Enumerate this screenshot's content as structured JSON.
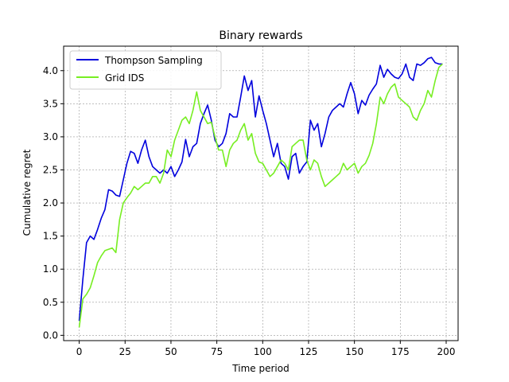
{
  "chart_data": {
    "type": "line",
    "title": "Binary rewards",
    "xlabel": "Time period",
    "ylabel": "Cumulative regret",
    "xlim": [
      -8.5,
      206.5
    ],
    "ylim": [
      -0.08,
      4.37
    ],
    "xticks": [
      0,
      25,
      50,
      75,
      100,
      125,
      150,
      175,
      200
    ],
    "yticks": [
      0.0,
      0.5,
      1.0,
      1.5,
      2.0,
      2.5,
      3.0,
      3.5,
      4.0
    ],
    "xtick_labels": [
      "0",
      "25",
      "50",
      "75",
      "100",
      "125",
      "150",
      "175",
      "200"
    ],
    "ytick_labels": [
      "0.0",
      "0.5",
      "1.0",
      "1.5",
      "2.0",
      "2.5",
      "3.0",
      "3.5",
      "4.0"
    ],
    "grid": true,
    "legend_position": "upper-left",
    "series": [
      {
        "name": "Thompson Sampling",
        "color": "#0000dd",
        "x": [
          0,
          2,
          4,
          6,
          8,
          10,
          12,
          14,
          16,
          18,
          20,
          22,
          24,
          26,
          28,
          30,
          32,
          34,
          36,
          38,
          40,
          42,
          44,
          46,
          48,
          50,
          52,
          54,
          56,
          58,
          60,
          62,
          64,
          66,
          68,
          70,
          72,
          74,
          76,
          78,
          80,
          82,
          84,
          86,
          88,
          90,
          92,
          94,
          96,
          98,
          100,
          102,
          104,
          106,
          108,
          110,
          112,
          114,
          116,
          118,
          120,
          122,
          124,
          126,
          128,
          130,
          132,
          134,
          136,
          138,
          140,
          142,
          144,
          146,
          148,
          150,
          152,
          154,
          156,
          158,
          160,
          162,
          164,
          166,
          168,
          170,
          172,
          174,
          176,
          178,
          180,
          182,
          184,
          186,
          188,
          190,
          192,
          194,
          196,
          198
        ],
        "y": [
          0.22,
          0.85,
          1.4,
          1.5,
          1.45,
          1.6,
          1.77,
          1.9,
          2.2,
          2.18,
          2.12,
          2.1,
          2.35,
          2.6,
          2.78,
          2.75,
          2.6,
          2.8,
          2.95,
          2.7,
          2.55,
          2.5,
          2.45,
          2.5,
          2.45,
          2.55,
          2.4,
          2.5,
          2.62,
          2.96,
          2.7,
          2.85,
          2.9,
          3.2,
          3.35,
          3.48,
          3.25,
          2.95,
          2.85,
          2.9,
          3.05,
          3.35,
          3.3,
          3.3,
          3.6,
          3.92,
          3.7,
          3.85,
          3.3,
          3.62,
          3.4,
          3.2,
          2.95,
          2.7,
          2.9,
          2.6,
          2.55,
          2.36,
          2.7,
          2.75,
          2.45,
          2.55,
          2.62,
          3.25,
          3.1,
          3.2,
          2.85,
          3.05,
          3.3,
          3.4,
          3.45,
          3.5,
          3.45,
          3.65,
          3.82,
          3.65,
          3.35,
          3.55,
          3.48,
          3.63,
          3.72,
          3.8,
          4.08,
          3.9,
          4.02,
          3.95,
          3.9,
          3.88,
          3.95,
          4.1,
          3.9,
          3.85,
          4.1,
          4.08,
          4.12,
          4.18,
          4.2,
          4.12,
          4.1,
          4.1
        ]
      },
      {
        "name": "Grid IDS",
        "color": "#77ee22",
        "x": [
          0,
          2,
          4,
          6,
          8,
          10,
          12,
          14,
          16,
          18,
          20,
          22,
          24,
          26,
          28,
          30,
          32,
          34,
          36,
          38,
          40,
          42,
          44,
          46,
          48,
          50,
          52,
          54,
          56,
          58,
          60,
          62,
          64,
          66,
          68,
          70,
          72,
          74,
          76,
          78,
          80,
          82,
          84,
          86,
          88,
          90,
          92,
          94,
          96,
          98,
          100,
          102,
          104,
          106,
          108,
          110,
          112,
          114,
          116,
          118,
          120,
          122,
          124,
          126,
          128,
          130,
          132,
          134,
          136,
          138,
          140,
          142,
          144,
          146,
          148,
          150,
          152,
          154,
          156,
          158,
          160,
          162,
          164,
          166,
          168,
          170,
          172,
          174,
          176,
          178,
          180,
          182,
          184,
          186,
          188,
          190,
          192,
          194,
          196,
          198
        ],
        "y": [
          0.12,
          0.55,
          0.62,
          0.72,
          0.9,
          1.1,
          1.2,
          1.28,
          1.3,
          1.32,
          1.25,
          1.75,
          2.0,
          2.08,
          2.15,
          2.25,
          2.2,
          2.25,
          2.3,
          2.3,
          2.4,
          2.4,
          2.3,
          2.45,
          2.8,
          2.7,
          2.95,
          3.1,
          3.25,
          3.3,
          3.2,
          3.4,
          3.68,
          3.4,
          3.3,
          3.2,
          3.22,
          3.0,
          2.8,
          2.8,
          2.55,
          2.8,
          2.9,
          2.95,
          3.1,
          3.2,
          2.95,
          3.05,
          2.75,
          2.62,
          2.6,
          2.5,
          2.4,
          2.45,
          2.55,
          2.65,
          2.6,
          2.5,
          2.85,
          2.9,
          2.95,
          2.95,
          2.65,
          2.5,
          2.65,
          2.6,
          2.4,
          2.25,
          2.3,
          2.35,
          2.4,
          2.45,
          2.6,
          2.5,
          2.55,
          2.6,
          2.45,
          2.55,
          2.6,
          2.72,
          2.9,
          3.2,
          3.6,
          3.5,
          3.65,
          3.75,
          3.8,
          3.6,
          3.55,
          3.5,
          3.45,
          3.3,
          3.25,
          3.4,
          3.5,
          3.7,
          3.6,
          3.85,
          4.05,
          4.1
        ]
      }
    ]
  }
}
